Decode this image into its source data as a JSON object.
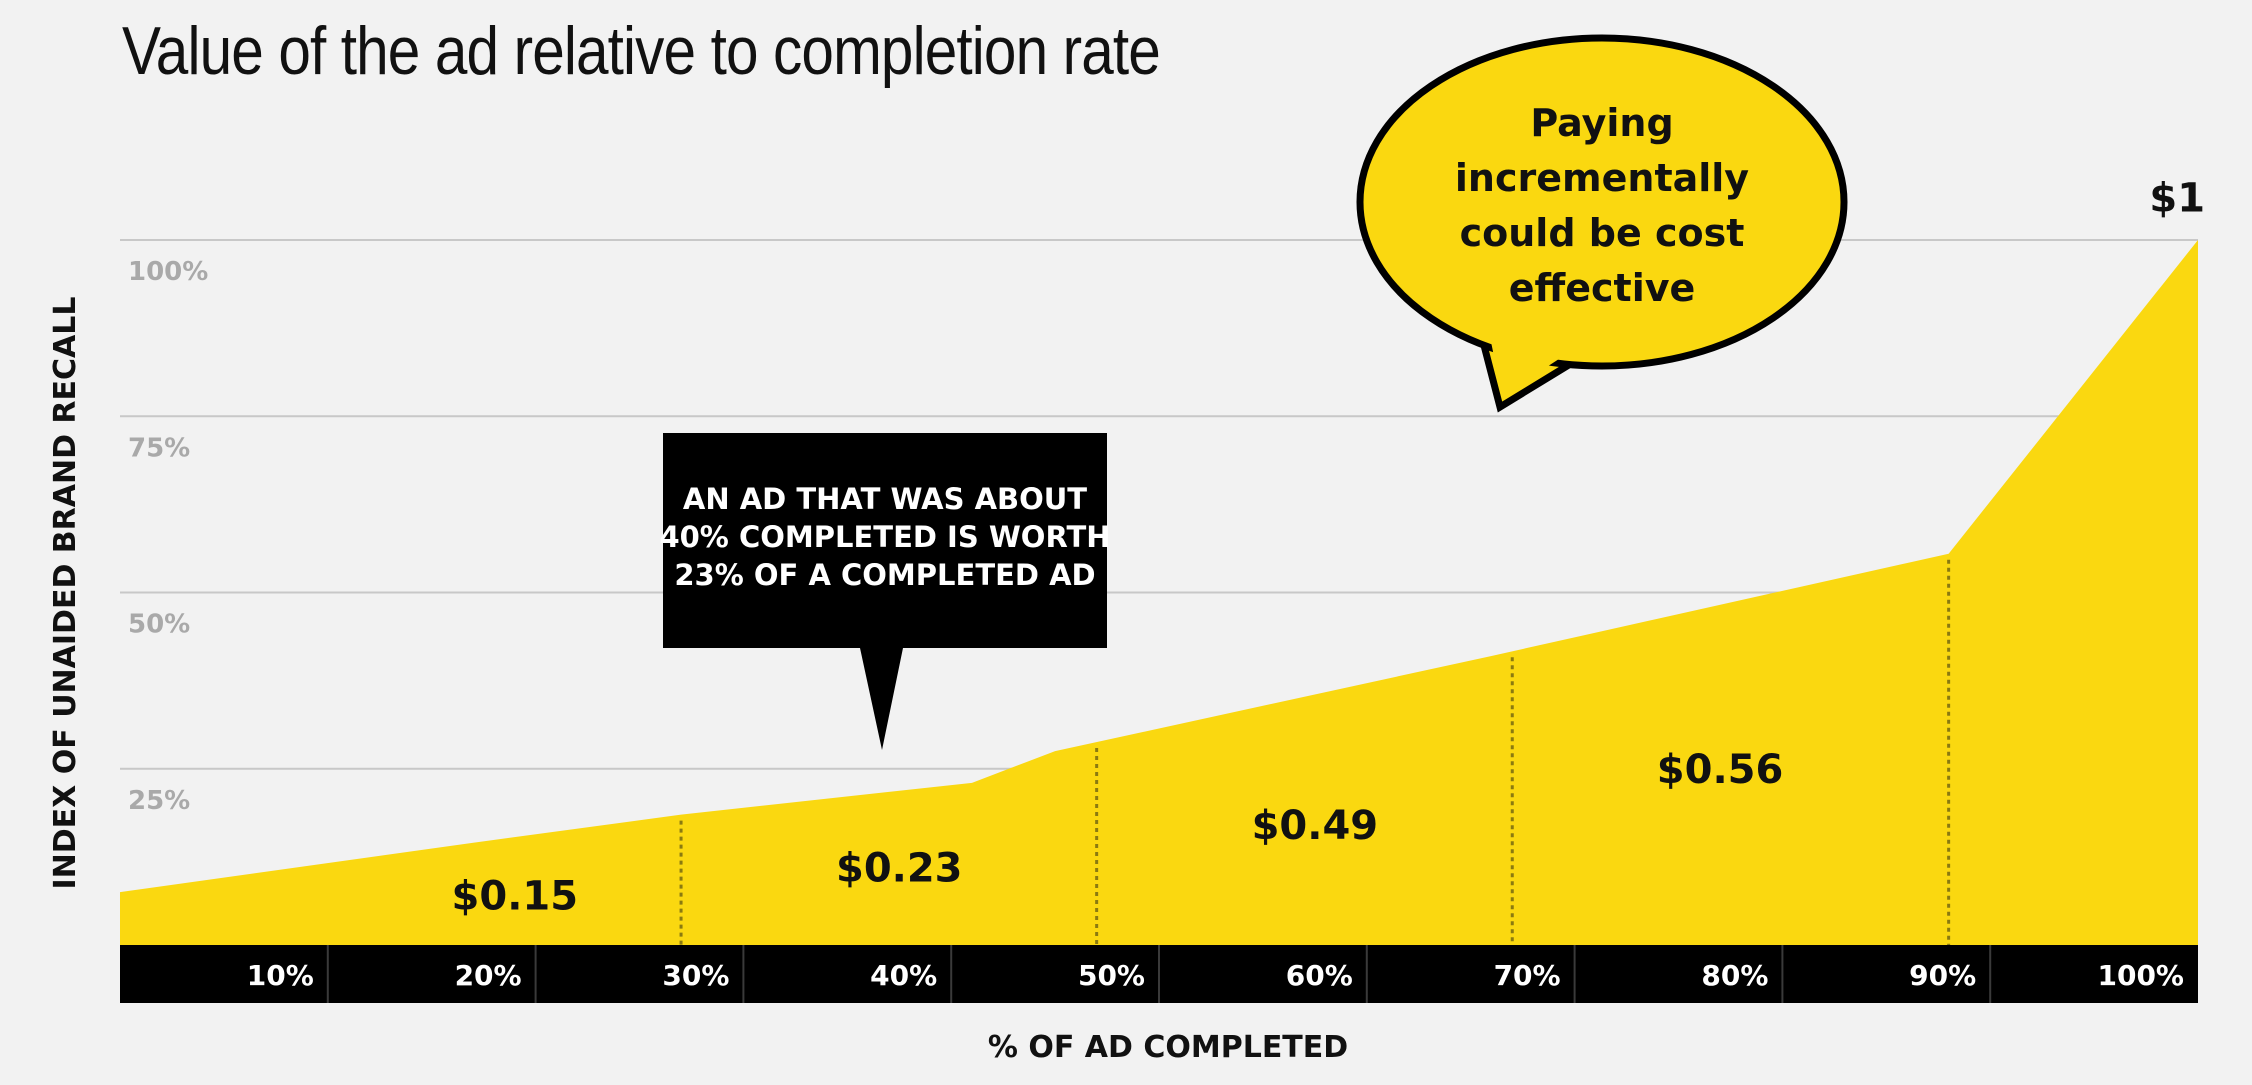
{
  "title": "Value of the ad relative to completion rate",
  "colors": {
    "area": "#fad810",
    "band": "#000000",
    "grid": "#c8c8c8",
    "background": "#f2f2f2",
    "ytick": "#a9a9a9"
  },
  "chart_data": {
    "type": "area",
    "xlabel": "% OF AD COMPLETED",
    "ylabel": "INDEX OF UNAIDED BRAND RECALL",
    "x_ticks": [
      "10%",
      "20%",
      "30%",
      "40%",
      "50%",
      "60%",
      "70%",
      "80%",
      "90%",
      "100%"
    ],
    "y_ticks": [
      "25%",
      "50%",
      "75%",
      "100%"
    ],
    "ylim": [
      0,
      100
    ],
    "grid": true,
    "points": [
      {
        "x": 0,
        "y": 7.5
      },
      {
        "x": 17,
        "y": 14.5
      },
      {
        "x": 27,
        "y": 18.5
      },
      {
        "x": 41,
        "y": 23
      },
      {
        "x": 45,
        "y": 27.5
      },
      {
        "x": 66,
        "y": 41
      },
      {
        "x": 88,
        "y": 55.5
      },
      {
        "x": 100,
        "y": 100
      }
    ],
    "dividers": [
      27,
      47,
      67,
      88
    ],
    "segment_values": [
      {
        "label": "$0.15",
        "x": 19,
        "y": 7
      },
      {
        "label": "$0.23",
        "x": 37.5,
        "y": 11
      },
      {
        "label": "$0.49",
        "x": 57.5,
        "y": 17
      },
      {
        "label": "$0.56",
        "x": 77,
        "y": 25
      }
    ],
    "end_label": {
      "label": "$1",
      "x": 99,
      "y": 106
    },
    "annotations": {
      "box": [
        "AN AD THAT WAS ABOUT",
        "40% COMPLETED IS WORTH",
        "23% OF A COMPLETED AD"
      ],
      "bubble": [
        "Paying",
        "incrementally",
        "could be cost",
        "effective"
      ]
    }
  }
}
